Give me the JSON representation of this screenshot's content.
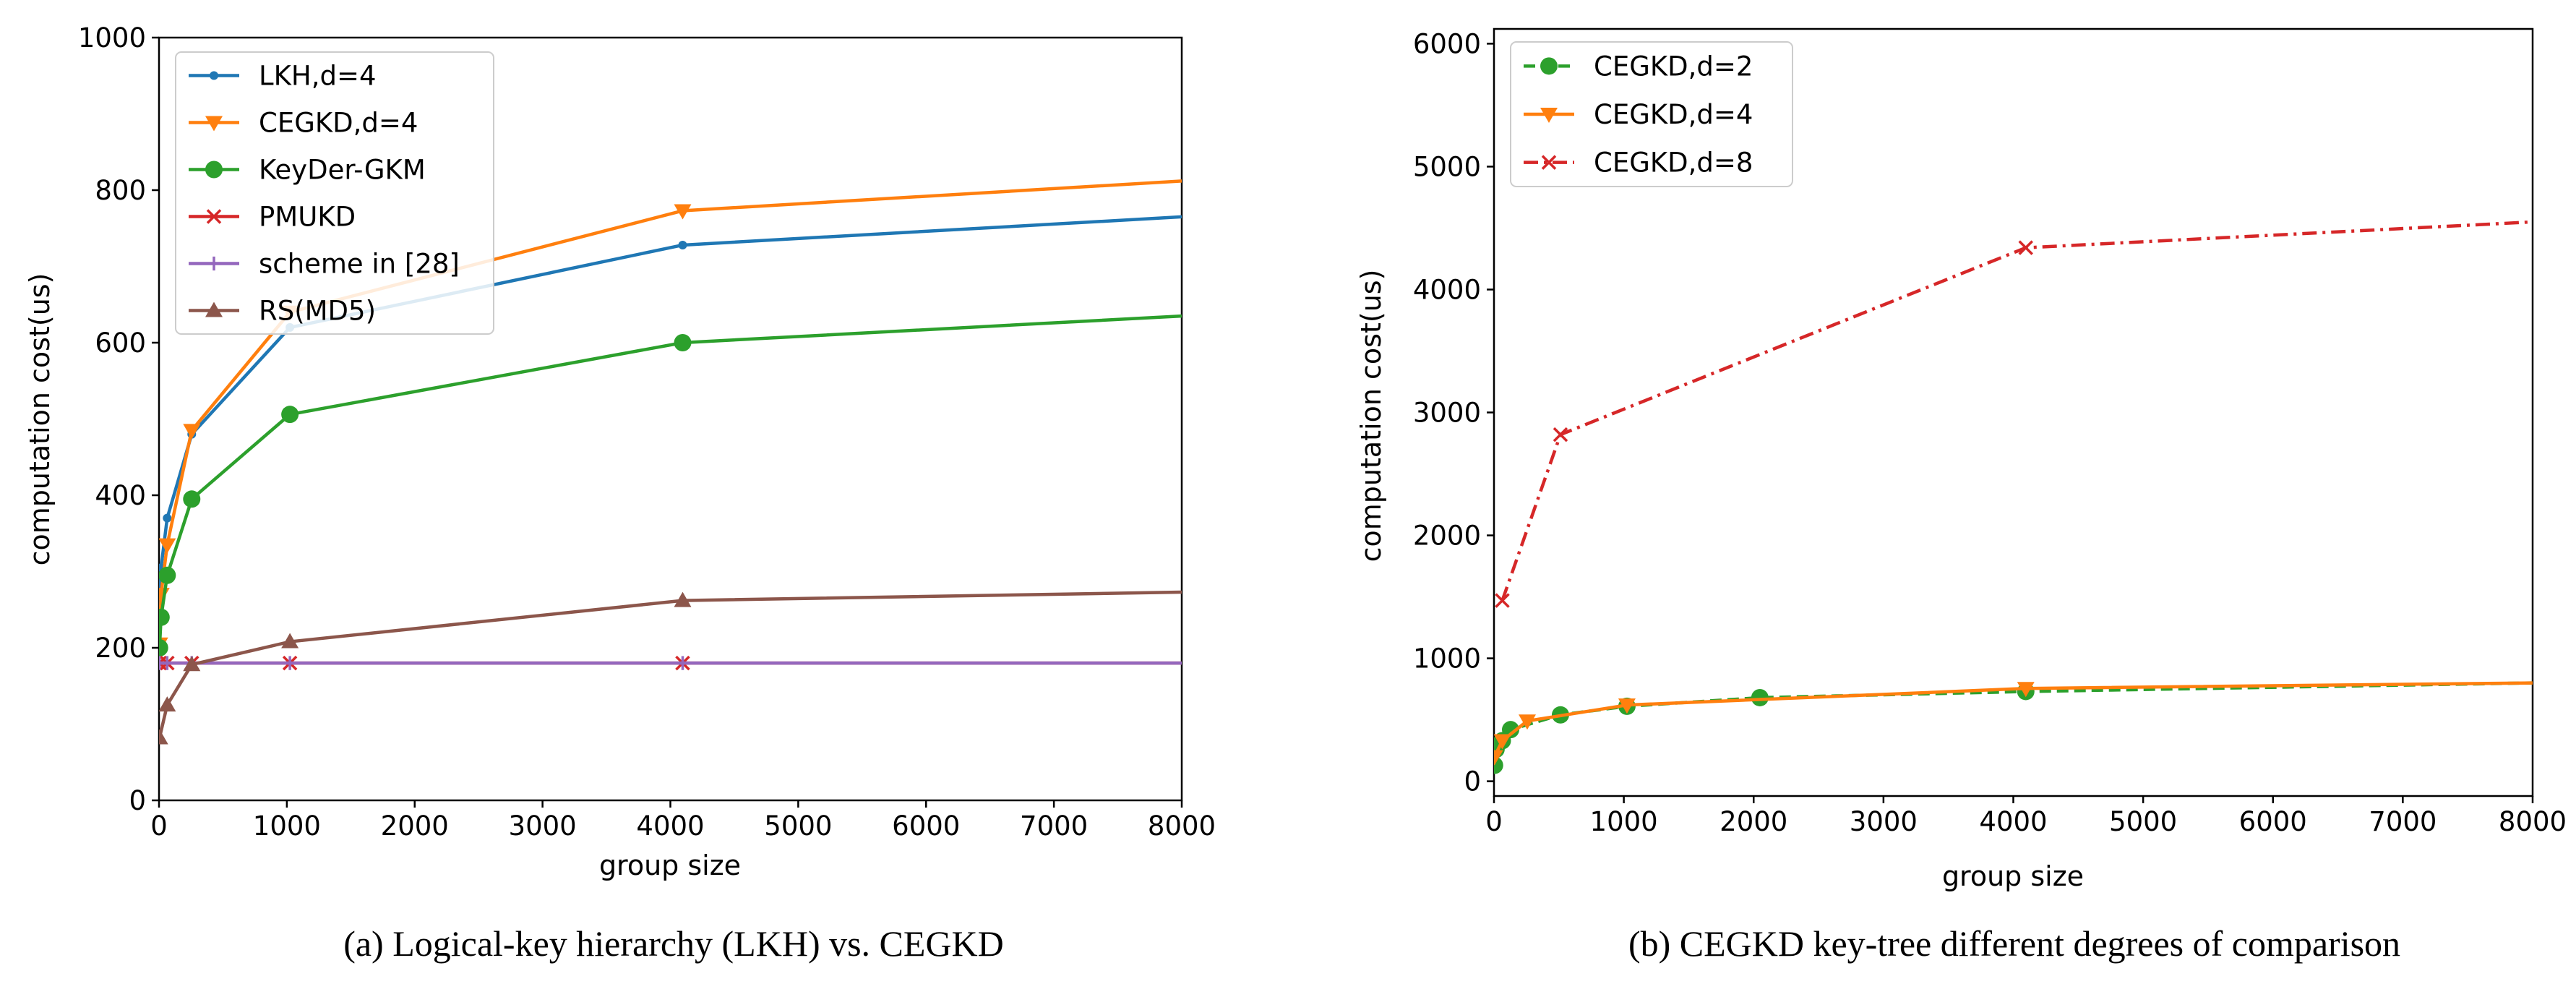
{
  "figure": {
    "captions": {
      "a": "(a) Logical-key hierarchy (LKH) vs. CEGKD",
      "b": "(b) CEGKD key-tree different degrees of comparison"
    }
  },
  "chart_data": [
    {
      "id": "a",
      "type": "line",
      "title": "",
      "xlabel": "group size",
      "ylabel": "computation cost(us)",
      "xlim": [
        0,
        8000
      ],
      "ylim": [
        0,
        1000
      ],
      "xticks": [
        0,
        1000,
        2000,
        3000,
        4000,
        5000,
        6000,
        7000,
        8000
      ],
      "yticks": [
        0,
        200,
        400,
        600,
        800,
        1000
      ],
      "grid": false,
      "legend_position": "top-left",
      "series": [
        {
          "name": "LKH,d=4",
          "color": "#1f77b4",
          "marker": "dot",
          "dash": "solid",
          "x": [
            4,
            16,
            64,
            256,
            1024,
            4096,
            8000
          ],
          "y": [
            240,
            305,
            370,
            480,
            620,
            728,
            765
          ]
        },
        {
          "name": "CEGKD,d=4",
          "color": "#ff7f0e",
          "marker": "triangle-down",
          "dash": "solid",
          "x": [
            4,
            16,
            64,
            256,
            1024,
            4096,
            8000
          ],
          "y": [
            205,
            270,
            335,
            485,
            640,
            773,
            812
          ]
        },
        {
          "name": "KeyDer-GKM",
          "color": "#2ca02c",
          "marker": "circle",
          "dash": "solid",
          "x": [
            4,
            16,
            64,
            256,
            1024,
            4096,
            8000
          ],
          "y": [
            200,
            240,
            295,
            395,
            506,
            600,
            635
          ]
        },
        {
          "name": "PMUKD",
          "color": "#d62728",
          "marker": "x",
          "dash": "solid",
          "x": [
            4,
            64,
            256,
            1024,
            4096,
            8000
          ],
          "y": [
            180,
            180,
            180,
            180,
            180,
            180
          ]
        },
        {
          "name": "scheme in [28]",
          "color": "#9467bd",
          "marker": "plus",
          "dash": "solid",
          "x": [
            4,
            64,
            256,
            1024,
            4096,
            8000
          ],
          "y": [
            180,
            180,
            180,
            180,
            180,
            180
          ]
        },
        {
          "name": "RS(MD5)",
          "color": "#8c564b",
          "marker": "triangle-up",
          "dash": "solid",
          "x": [
            4,
            64,
            256,
            1024,
            4096,
            8000
          ],
          "y": [
            82,
            125,
            178,
            208,
            262,
            273
          ]
        }
      ]
    },
    {
      "id": "b",
      "type": "line",
      "title": "",
      "xlabel": "group size",
      "ylabel": "computation cost(us)",
      "xlim": [
        0,
        8000
      ],
      "ylim": [
        -120,
        6120
      ],
      "xticks": [
        0,
        1000,
        2000,
        3000,
        4000,
        5000,
        6000,
        7000,
        8000
      ],
      "yticks": [
        0,
        1000,
        2000,
        3000,
        4000,
        5000,
        6000
      ],
      "grid": false,
      "legend_position": "top-left",
      "series": [
        {
          "name": "CEGKD,d=2",
          "color": "#2ca02c",
          "marker": "circle",
          "dash": "dashed",
          "x": [
            4,
            16,
            64,
            128,
            512,
            1024,
            2048,
            4096,
            8000
          ],
          "y": [
            130,
            260,
            330,
            420,
            540,
            610,
            680,
            730,
            800
          ]
        },
        {
          "name": "CEGKD,d=4",
          "color": "#ff7f0e",
          "marker": "triangle-down",
          "dash": "solid",
          "x": [
            4,
            64,
            256,
            1024,
            4096,
            8000
          ],
          "y": [
            200,
            330,
            490,
            620,
            755,
            800
          ]
        },
        {
          "name": "CEGKD,d=8",
          "color": "#d62728",
          "marker": "x",
          "dash": "dashdot",
          "x": [
            64,
            512,
            4096,
            8000
          ],
          "y": [
            1470,
            2820,
            4340,
            4550
          ]
        }
      ]
    }
  ]
}
